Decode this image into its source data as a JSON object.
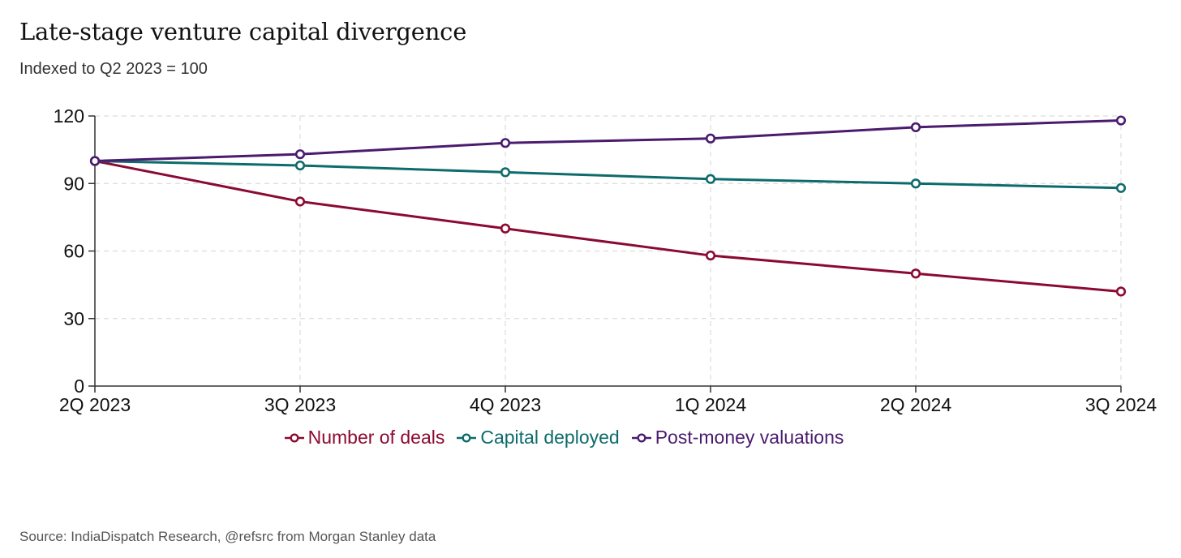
{
  "title": "Late-stage venture capital divergence",
  "subtitle": "Indexed to Q2 2023 = 100",
  "source": "Source: IndiaDispatch Research, @refsrc from Morgan Stanley data",
  "chart_data": {
    "type": "line",
    "title": "Late-stage venture capital divergence",
    "subtitle": "Indexed to Q2 2023 = 100",
    "categories": [
      "2Q 2023",
      "3Q 2023",
      "4Q 2023",
      "1Q 2024",
      "2Q 2024",
      "3Q 2024"
    ],
    "ylim": [
      0,
      120
    ],
    "yticks": [
      0,
      30,
      60,
      90,
      120
    ],
    "grid": true,
    "legend_position": "bottom-center",
    "series": [
      {
        "name": "Number of deals",
        "color": "#8b0a32",
        "values": [
          100,
          82,
          70,
          58,
          50,
          42
        ]
      },
      {
        "name": "Capital deployed",
        "color": "#0e6b6b",
        "values": [
          100,
          98,
          95,
          92,
          90,
          88
        ]
      },
      {
        "name": "Post-money valuations",
        "color": "#4a1b6e",
        "values": [
          100,
          103,
          108,
          110,
          115,
          118
        ]
      }
    ]
  }
}
